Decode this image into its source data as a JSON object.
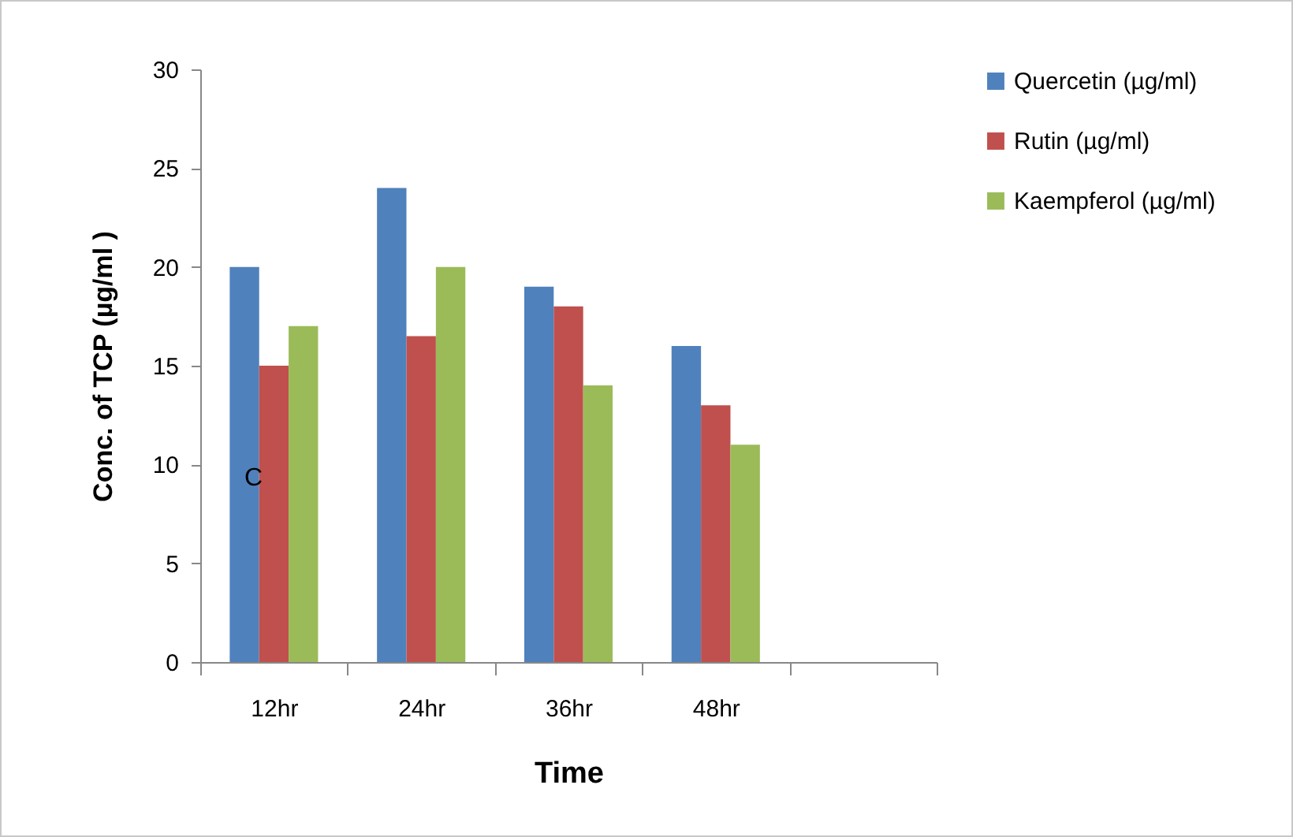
{
  "chart_data": {
    "type": "bar",
    "xlabel": "Time",
    "ylabel": "Conc. of TCP (µg/ml )",
    "categories": [
      "12hr",
      "24hr",
      "36hr",
      "48hr",
      null
    ],
    "series": [
      {
        "name": "Quercetin (µg/ml)",
        "color": "#4f81bd",
        "values": [
          20,
          24,
          19,
          16,
          null
        ]
      },
      {
        "name": "Rutin (µg/ml)",
        "color": "#c0504d",
        "values": [
          15,
          16.5,
          18,
          13,
          null
        ]
      },
      {
        "name": "Kaempferol (µg/ml)",
        "color": "#9bbb59",
        "values": [
          17,
          20,
          14,
          11,
          null
        ]
      }
    ],
    "ylim": [
      0,
      30
    ],
    "yticks": [
      0,
      5,
      10,
      15,
      20,
      25,
      30
    ],
    "grid": false,
    "legend": "right",
    "annotations": [
      "C"
    ]
  }
}
